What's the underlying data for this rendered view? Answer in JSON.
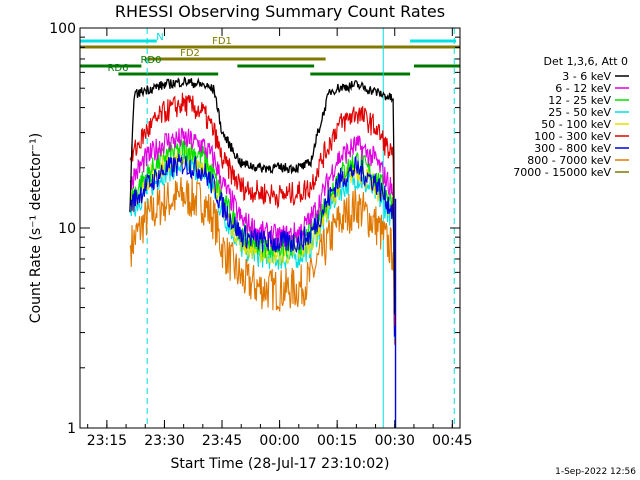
{
  "chart_data": {
    "type": "line",
    "title": "RHESSI Observing Summary Count Rates",
    "xlabel": "Start Time (28-Jul-17 23:10:02)",
    "ylabel": "Count Rate (s⁻¹ detector⁻¹)",
    "yscale": "log",
    "ylim": [
      1,
      100
    ],
    "xlim_minutes": [
      -2,
      97
    ],
    "x_ticks": [
      {
        "label": "23:15",
        "t": 5
      },
      {
        "label": "23:30",
        "t": 20
      },
      {
        "label": "23:45",
        "t": 35
      },
      {
        "label": "00:00",
        "t": 50
      },
      {
        "label": "00:15",
        "t": 65
      },
      {
        "label": "00:30",
        "t": 80
      },
      {
        "label": "00:45",
        "t": 95
      }
    ],
    "y_ticks": [
      {
        "label": "100",
        "v": 100
      },
      {
        "label": "10",
        "v": 10
      },
      {
        "label": "1",
        "v": 1
      }
    ],
    "legend_header": "Det 1,3,6, Att 0",
    "footer": "1-Sep-2022 12:56",
    "series": [
      {
        "name": "3 - 6 keV",
        "color": "#000000",
        "t": [
          11,
          12,
          15,
          20,
          25,
          30,
          33,
          35,
          40,
          45,
          50,
          55,
          58,
          60,
          63,
          65,
          70,
          75,
          79.7,
          80
        ],
        "values": [
          12,
          46,
          49,
          52,
          54,
          52,
          49,
          30,
          21,
          20,
          20,
          20,
          21,
          30,
          48,
          50,
          52,
          48,
          44,
          2
        ]
      },
      {
        "name": "6 - 12 keV",
        "color": "#e000e0",
        "t": [
          11,
          15,
          20,
          25,
          30,
          33,
          35,
          40,
          45,
          50,
          55,
          58,
          60,
          65,
          70,
          75,
          79.7,
          80
        ],
        "values": [
          17,
          22,
          27,
          28,
          26,
          22,
          17,
          11,
          9.5,
          9,
          9.5,
          11,
          13,
          22,
          26,
          22,
          15,
          2
        ]
      },
      {
        "name": "12 - 25 keV",
        "color": "#00e000",
        "t": [
          11,
          15,
          20,
          25,
          30,
          33,
          35,
          40,
          45,
          50,
          55,
          58,
          60,
          65,
          70,
          75,
          79.7,
          80
        ],
        "values": [
          14,
          18,
          23,
          25,
          23,
          18,
          14,
          9.5,
          8.2,
          8,
          8.2,
          9.5,
          11,
          18,
          22,
          18,
          13,
          2
        ]
      },
      {
        "name": "25 - 50 keV",
        "color": "#00e0e0",
        "t": [
          11,
          15,
          20,
          25,
          30,
          33,
          35,
          40,
          45,
          50,
          55,
          58,
          60,
          65,
          70,
          75,
          79.7,
          80
        ],
        "values": [
          12,
          15,
          19,
          21,
          19,
          15,
          12,
          8,
          7.2,
          7,
          7.2,
          8,
          9.5,
          15,
          18,
          15,
          11,
          2
        ]
      },
      {
        "name": "50 - 100 keV",
        "color": "#e0e000",
        "t": [
          11,
          15,
          20,
          25,
          30,
          33,
          35,
          40,
          45,
          50,
          55,
          58,
          60,
          65,
          70,
          75,
          79.7,
          80
        ],
        "values": [
          13,
          17,
          21,
          23,
          21,
          17,
          13,
          8.5,
          7.6,
          7.4,
          7.6,
          8.5,
          10,
          16,
          20,
          16,
          12,
          2
        ]
      },
      {
        "name": "100 - 300 keV",
        "color": "#e00000",
        "t": [
          11,
          15,
          20,
          25,
          30,
          33,
          35,
          40,
          45,
          50,
          55,
          58,
          60,
          65,
          70,
          75,
          79.7,
          80
        ],
        "values": [
          22,
          30,
          38,
          42,
          38,
          30,
          22,
          16,
          15,
          14.5,
          15,
          16,
          20,
          32,
          38,
          32,
          22,
          2
        ]
      },
      {
        "name": "300 - 800 keV",
        "color": "#0000e0",
        "t": [
          11,
          15,
          20,
          25,
          30,
          33,
          35,
          40,
          45,
          50,
          55,
          58,
          60,
          65,
          70,
          75,
          79.7,
          80
        ],
        "values": [
          13,
          16,
          19.5,
          21,
          19.5,
          16,
          13,
          9.2,
          8.6,
          8.4,
          8.6,
          9.2,
          11,
          17,
          20,
          17,
          12,
          2
        ]
      },
      {
        "name": "800 - 7000 keV",
        "color": "#e07800",
        "t": [
          11,
          15,
          20,
          25,
          30,
          33,
          35,
          40,
          45,
          50,
          55,
          58,
          60,
          65,
          70,
          75,
          79.7,
          80
        ],
        "values": [
          8,
          11,
          13.5,
          14.5,
          13.5,
          11,
          8,
          5.6,
          5,
          4.9,
          5,
          5.6,
          6.8,
          10.5,
          13,
          10.5,
          7.5,
          2
        ]
      },
      {
        "name": "7000 - 15000 keV",
        "color": "#807800",
        "t": [],
        "values": []
      }
    ],
    "flags": [
      {
        "name": "N",
        "color": "#00e0e0",
        "level": 0,
        "segments": [
          [
            -2,
            18
          ],
          [
            84,
            96
          ]
        ]
      },
      {
        "name": "FD1",
        "color": "#807800",
        "level": 1,
        "segments": [
          [
            -2,
            98
          ]
        ]
      },
      {
        "name": "FD2",
        "color": "#807800",
        "level": 2,
        "segments": [
          [
            15,
            62
          ]
        ]
      },
      {
        "name": "RD0",
        "color": "#007800",
        "level": 3,
        "segments": [
          [
            -2,
            14
          ],
          [
            39,
            59
          ],
          [
            85,
            97
          ]
        ]
      },
      {
        "name": "RD6",
        "color": "#007800",
        "level": 4,
        "segments": [
          [
            8,
            34
          ],
          [
            58,
            84
          ]
        ]
      }
    ],
    "vertical_lines": [
      {
        "t": -2,
        "color": "#00e0e0",
        "style": "solid"
      },
      {
        "t": 77,
        "color": "#00e0e0",
        "style": "solid"
      },
      {
        "t": 15.5,
        "color": "#00e0e0",
        "style": "dashed"
      },
      {
        "t": 95.5,
        "color": "#00e0e0",
        "style": "dashed"
      }
    ]
  }
}
